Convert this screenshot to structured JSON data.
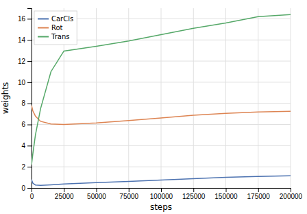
{
  "chart_data": {
    "type": "line",
    "xlabel": "steps",
    "ylabel": "weights",
    "x": [
      0,
      1000,
      3000,
      7000,
      15000,
      25000,
      50000,
      75000,
      100000,
      125000,
      150000,
      175000,
      200000
    ],
    "series": [
      {
        "name": "CarCls",
        "color": "#4c72b0",
        "values": [
          0.8,
          0.45,
          0.28,
          0.25,
          0.3,
          0.38,
          0.5,
          0.62,
          0.75,
          0.88,
          1.0,
          1.08,
          1.15
        ]
      },
      {
        "name": "Rot",
        "color": "#dd8452",
        "values": [
          7.8,
          7.3,
          6.8,
          6.3,
          6.05,
          6.0,
          6.15,
          6.38,
          6.62,
          6.88,
          7.05,
          7.18,
          7.25
        ]
      },
      {
        "name": "Trans",
        "color": "#55a868",
        "values": [
          2.2,
          3.2,
          5.0,
          7.5,
          11.0,
          12.95,
          13.4,
          13.9,
          14.5,
          15.1,
          15.6,
          16.2,
          16.4
        ]
      }
    ],
    "xlim": [
      0,
      200000
    ],
    "ylim": [
      0,
      17
    ],
    "xticks": [
      0,
      25000,
      50000,
      75000,
      100000,
      125000,
      150000,
      175000,
      200000
    ],
    "yticks": [
      0,
      2,
      4,
      6,
      8,
      10,
      12,
      14,
      16
    ],
    "grid": true,
    "legend": "upper left"
  }
}
